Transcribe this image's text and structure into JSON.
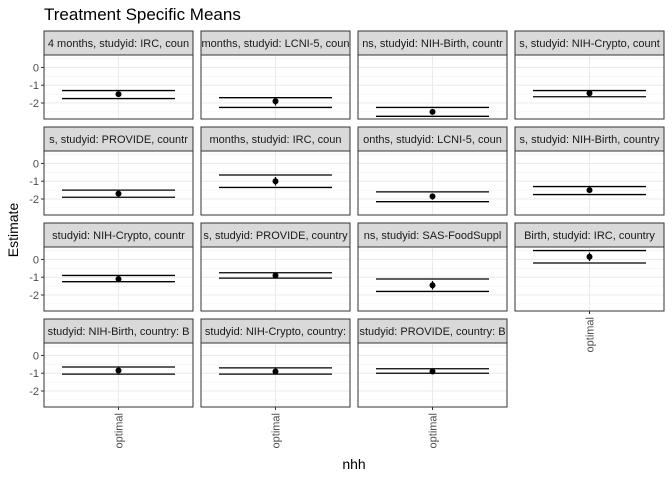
{
  "chart_data": {
    "type": "scatter",
    "title": "Treatment Specific Means",
    "xlabel": "nhh",
    "ylabel": "Estimate",
    "ylim": [
      -2.9,
      0.7
    ],
    "yticks": [
      0,
      -1,
      -2
    ],
    "xtick_label": "optimal",
    "grid": true,
    "facets": [
      {
        "strip": "4 months, studyid: IRC, coun",
        "estimate": -1.5,
        "ci_upper": -1.3,
        "ci_lower": -1.75
      },
      {
        "strip": "months, studyid: LCNI-5, coun",
        "estimate": -1.9,
        "ci_upper": -1.7,
        "ci_lower": -2.25
      },
      {
        "strip": "ns, studyid: NIH-Birth, countr",
        "estimate": -2.5,
        "ci_upper": -2.25,
        "ci_lower": -2.75
      },
      {
        "strip": "s, studyid: NIH-Crypto, count",
        "estimate": -1.45,
        "ci_upper": -1.3,
        "ci_lower": -1.65
      },
      {
        "strip": "s, studyid: PROVIDE, countr",
        "estimate": -1.7,
        "ci_upper": -1.5,
        "ci_lower": -1.9
      },
      {
        "strip": "months, studyid: IRC, coun",
        "estimate": -1.0,
        "ci_upper": -0.65,
        "ci_lower": -1.35
      },
      {
        "strip": "onths, studyid: LCNI-5, coun",
        "estimate": -1.85,
        "ci_upper": -1.6,
        "ci_lower": -2.15
      },
      {
        "strip": "s, studyid: NIH-Birth, country",
        "estimate": -1.5,
        "ci_upper": -1.3,
        "ci_lower": -1.75
      },
      {
        "strip": "studyid: NIH-Crypto, countr",
        "estimate": -1.1,
        "ci_upper": -0.9,
        "ci_lower": -1.25
      },
      {
        "strip": "s, studyid: PROVIDE, country",
        "estimate": -0.9,
        "ci_upper": -0.75,
        "ci_lower": -1.05
      },
      {
        "strip": "ns, studyid: SAS-FoodSuppl",
        "estimate": -1.45,
        "ci_upper": -1.1,
        "ci_lower": -1.8
      },
      {
        "strip": "Birth, studyid: IRC, country",
        "estimate": 0.15,
        "ci_upper": 0.5,
        "ci_lower": -0.2
      },
      {
        "strip": "studyid: NIH-Birth, country: B",
        "estimate": -0.85,
        "ci_upper": -0.65,
        "ci_lower": -1.05
      },
      {
        "strip": "studyid: NIH-Crypto, country:",
        "estimate": -0.9,
        "ci_upper": -0.7,
        "ci_lower": -1.05
      },
      {
        "strip": "studyid: PROVIDE, country: B",
        "estimate": -0.9,
        "ci_upper": -0.75,
        "ci_lower": -1.0
      }
    ]
  }
}
